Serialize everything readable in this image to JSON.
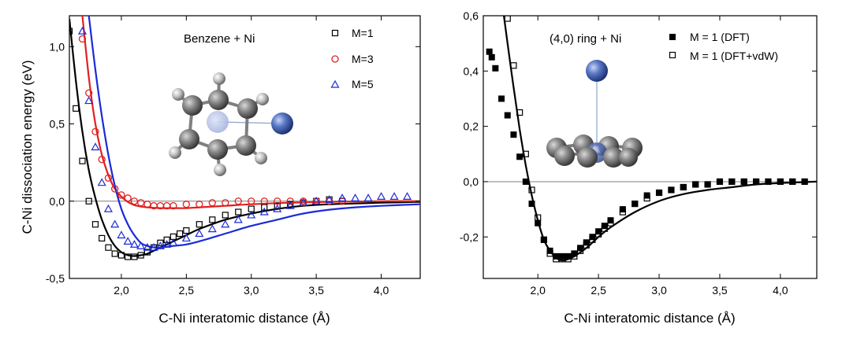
{
  "chart_data": [
    {
      "type": "scatter",
      "title": "Benzene + Ni",
      "xlabel": "C-Ni interatomic distance (Å)",
      "ylabel": "C-Ni dissociation energy (eV)",
      "xlim": [
        1.6,
        4.3
      ],
      "ylim": [
        -0.5,
        1.2
      ],
      "xticks": [
        2.0,
        2.5,
        3.0,
        3.5,
        4.0
      ],
      "xtick_labels": [
        "2,0",
        "2,5",
        "3,0",
        "3,5",
        "4,0"
      ],
      "yticks": [
        -0.5,
        0.0,
        0.5,
        1.0
      ],
      "ytick_labels": [
        "-0,5",
        "0,0",
        "0,5",
        "1,0"
      ],
      "legend_position": "top-right",
      "zero_line": true,
      "series": [
        {
          "name": "M=1",
          "marker": "open-square",
          "color": "#000000",
          "x": [
            1.6,
            1.65,
            1.7,
            1.75,
            1.8,
            1.85,
            1.9,
            1.95,
            2.0,
            2.05,
            2.1,
            2.15,
            2.2,
            2.25,
            2.3,
            2.35,
            2.4,
            2.45,
            2.5,
            2.6,
            2.7,
            2.8,
            2.9,
            3.0,
            3.1,
            3.2,
            3.3,
            3.4,
            3.5,
            3.6,
            3.7
          ],
          "y": [
            1.1,
            0.6,
            0.26,
            0.0,
            -0.15,
            -0.24,
            -0.3,
            -0.34,
            -0.35,
            -0.36,
            -0.36,
            -0.35,
            -0.33,
            -0.3,
            -0.27,
            -0.25,
            -0.23,
            -0.21,
            -0.19,
            -0.15,
            -0.12,
            -0.09,
            -0.07,
            -0.05,
            -0.04,
            -0.03,
            -0.02,
            -0.01,
            0.0,
            0.01,
            0.0
          ]
        },
        {
          "name": "M=3",
          "marker": "open-circle",
          "color": "#e02020",
          "x": [
            1.7,
            1.75,
            1.8,
            1.85,
            1.9,
            1.95,
            2.0,
            2.05,
            2.1,
            2.15,
            2.2,
            2.25,
            2.3,
            2.35,
            2.4,
            2.5,
            2.6,
            2.7,
            2.8,
            2.9,
            3.0,
            3.1,
            3.2,
            3.3,
            3.4,
            3.5,
            3.6,
            3.7
          ],
          "y": [
            1.05,
            0.7,
            0.45,
            0.27,
            0.15,
            0.08,
            0.04,
            0.02,
            0.0,
            -0.01,
            -0.02,
            -0.03,
            -0.03,
            -0.03,
            -0.03,
            -0.02,
            -0.02,
            -0.01,
            -0.01,
            0.0,
            0.0,
            0.0,
            0.0,
            0.0,
            0.0,
            0.0,
            0.0,
            0.0
          ]
        },
        {
          "name": "M=5",
          "marker": "open-triangle",
          "color": "#1a2ad8",
          "x": [
            1.7,
            1.75,
            1.8,
            1.85,
            1.9,
            1.95,
            2.0,
            2.05,
            2.1,
            2.15,
            2.2,
            2.25,
            2.3,
            2.35,
            2.4,
            2.5,
            2.6,
            2.7,
            2.8,
            2.9,
            3.0,
            3.1,
            3.2,
            3.3,
            3.4,
            3.5,
            3.6,
            3.7,
            3.8,
            3.9,
            4.0,
            4.1,
            4.2
          ],
          "y": [
            1.1,
            0.65,
            0.35,
            0.12,
            -0.05,
            -0.15,
            -0.22,
            -0.26,
            -0.28,
            -0.29,
            -0.3,
            -0.3,
            -0.29,
            -0.28,
            -0.27,
            -0.24,
            -0.21,
            -0.18,
            -0.15,
            -0.12,
            -0.09,
            -0.07,
            -0.05,
            -0.03,
            -0.01,
            0.0,
            0.01,
            0.02,
            0.02,
            0.02,
            0.03,
            0.03,
            0.03
          ]
        }
      ],
      "fits": [
        {
          "series": "M=1",
          "color": "#000000",
          "x": [
            1.6,
            1.65,
            1.7,
            1.75,
            1.8,
            1.85,
            1.9,
            1.95,
            2.0,
            2.05,
            2.1,
            2.15,
            2.2,
            2.3,
            2.4,
            2.5,
            2.6,
            2.8,
            3.0,
            3.2,
            3.4,
            3.6,
            3.8,
            4.0,
            4.3
          ],
          "y": [
            1.18,
            0.78,
            0.45,
            0.2,
            0.02,
            -0.12,
            -0.22,
            -0.29,
            -0.33,
            -0.35,
            -0.355,
            -0.35,
            -0.34,
            -0.3,
            -0.26,
            -0.22,
            -0.18,
            -0.12,
            -0.08,
            -0.05,
            -0.03,
            -0.02,
            -0.015,
            -0.01,
            -0.005
          ]
        },
        {
          "series": "M=3",
          "color": "#e02020",
          "x": [
            1.7,
            1.75,
            1.8,
            1.85,
            1.9,
            1.95,
            2.0,
            2.05,
            2.1,
            2.15,
            2.2,
            2.3,
            2.4,
            2.5,
            2.6,
            2.8,
            3.0,
            3.3,
            3.6,
            4.0,
            4.3
          ],
          "y": [
            1.2,
            0.8,
            0.5,
            0.3,
            0.17,
            0.08,
            0.03,
            -0.005,
            -0.025,
            -0.035,
            -0.04,
            -0.045,
            -0.045,
            -0.045,
            -0.04,
            -0.03,
            -0.02,
            -0.01,
            -0.005,
            0.0,
            0.0
          ]
        },
        {
          "series": "M=5",
          "color": "#1a2ad8",
          "x": [
            1.75,
            1.8,
            1.85,
            1.9,
            1.95,
            2.0,
            2.05,
            2.1,
            2.15,
            2.2,
            2.25,
            2.3,
            2.4,
            2.5,
            2.6,
            2.8,
            3.0,
            3.2,
            3.4,
            3.6,
            3.8,
            4.0,
            4.3
          ],
          "y": [
            1.2,
            0.85,
            0.55,
            0.3,
            0.1,
            -0.05,
            -0.15,
            -0.22,
            -0.27,
            -0.29,
            -0.3,
            -0.3,
            -0.29,
            -0.28,
            -0.26,
            -0.21,
            -0.16,
            -0.12,
            -0.08,
            -0.055,
            -0.04,
            -0.03,
            -0.02
          ]
        }
      ]
    },
    {
      "type": "scatter",
      "title": "(4,0) ring + Ni",
      "xlabel": "C-Ni interatomic distance (Å)",
      "ylabel": "",
      "xlim": [
        1.55,
        4.3
      ],
      "ylim": [
        -0.35,
        0.6
      ],
      "xticks": [
        2.0,
        2.5,
        3.0,
        3.5,
        4.0
      ],
      "xtick_labels": [
        "2,0",
        "2,5",
        "3,0",
        "3,5",
        "4,0"
      ],
      "yticks": [
        -0.2,
        0.0,
        0.2,
        0.4,
        0.6
      ],
      "ytick_labels": [
        "-0,2",
        "0,0",
        "0,2",
        "0,4",
        "0,6"
      ],
      "legend_position": "top-right",
      "zero_line": true,
      "series": [
        {
          "name": "M = 1 (DFT)",
          "marker": "filled-square",
          "color": "#000000",
          "x": [
            1.6,
            1.62,
            1.65,
            1.7,
            1.75,
            1.8,
            1.85,
            1.9,
            1.95,
            2.0,
            2.05,
            2.1,
            2.15,
            2.2,
            2.25,
            2.3,
            2.35,
            2.4,
            2.45,
            2.5,
            2.55,
            2.6,
            2.7,
            2.8,
            2.9,
            3.0,
            3.1,
            3.2,
            3.3,
            3.4,
            3.5,
            3.6,
            3.7,
            3.8,
            3.9,
            4.0,
            4.1,
            4.2
          ],
          "y": [
            0.47,
            0.45,
            0.41,
            0.3,
            0.24,
            0.17,
            0.09,
            0.0,
            -0.08,
            -0.15,
            -0.21,
            -0.25,
            -0.27,
            -0.27,
            -0.27,
            -0.26,
            -0.24,
            -0.22,
            -0.2,
            -0.18,
            -0.16,
            -0.14,
            -0.1,
            -0.08,
            -0.05,
            -0.04,
            -0.03,
            -0.02,
            -0.01,
            -0.01,
            0.0,
            0.0,
            0.0,
            0.0,
            0.0,
            0.0,
            0.0,
            0.0
          ]
        },
        {
          "name": "M = 1 (DFT+vdW)",
          "marker": "open-square",
          "color": "#000000",
          "x": [
            1.75,
            1.8,
            1.85,
            1.9,
            1.95,
            2.0,
            2.05,
            2.1,
            2.15,
            2.2,
            2.25,
            2.3,
            2.35,
            2.4,
            2.45,
            2.5,
            2.55,
            2.6,
            2.7,
            2.8,
            2.9,
            3.0,
            3.1,
            3.2,
            3.3,
            3.4,
            3.5,
            3.6,
            3.7,
            3.8,
            3.9,
            4.0,
            4.1,
            4.2
          ],
          "y": [
            0.59,
            0.42,
            0.25,
            0.1,
            -0.03,
            -0.13,
            -0.21,
            -0.26,
            -0.28,
            -0.28,
            -0.28,
            -0.27,
            -0.25,
            -0.23,
            -0.21,
            -0.19,
            -0.17,
            -0.15,
            -0.11,
            -0.08,
            -0.06,
            -0.04,
            -0.03,
            -0.02,
            -0.01,
            -0.01,
            0.0,
            0.0,
            0.0,
            0.0,
            0.0,
            0.0,
            0.0,
            0.0
          ]
        }
      ],
      "fits": [
        {
          "series": "M = 1 (DFT+vdW)",
          "color": "#000000",
          "x": [
            1.72,
            1.75,
            1.8,
            1.85,
            1.9,
            1.95,
            2.0,
            2.05,
            2.1,
            2.15,
            2.2,
            2.25,
            2.3,
            2.4,
            2.5,
            2.6,
            2.8,
            3.0,
            3.2,
            3.4,
            3.6,
            3.8,
            4.0,
            4.3
          ],
          "y": [
            0.6,
            0.5,
            0.34,
            0.19,
            0.06,
            -0.05,
            -0.14,
            -0.21,
            -0.25,
            -0.275,
            -0.285,
            -0.28,
            -0.27,
            -0.24,
            -0.2,
            -0.165,
            -0.11,
            -0.07,
            -0.045,
            -0.03,
            -0.02,
            -0.01,
            -0.005,
            0.0
          ]
        }
      ]
    }
  ]
}
